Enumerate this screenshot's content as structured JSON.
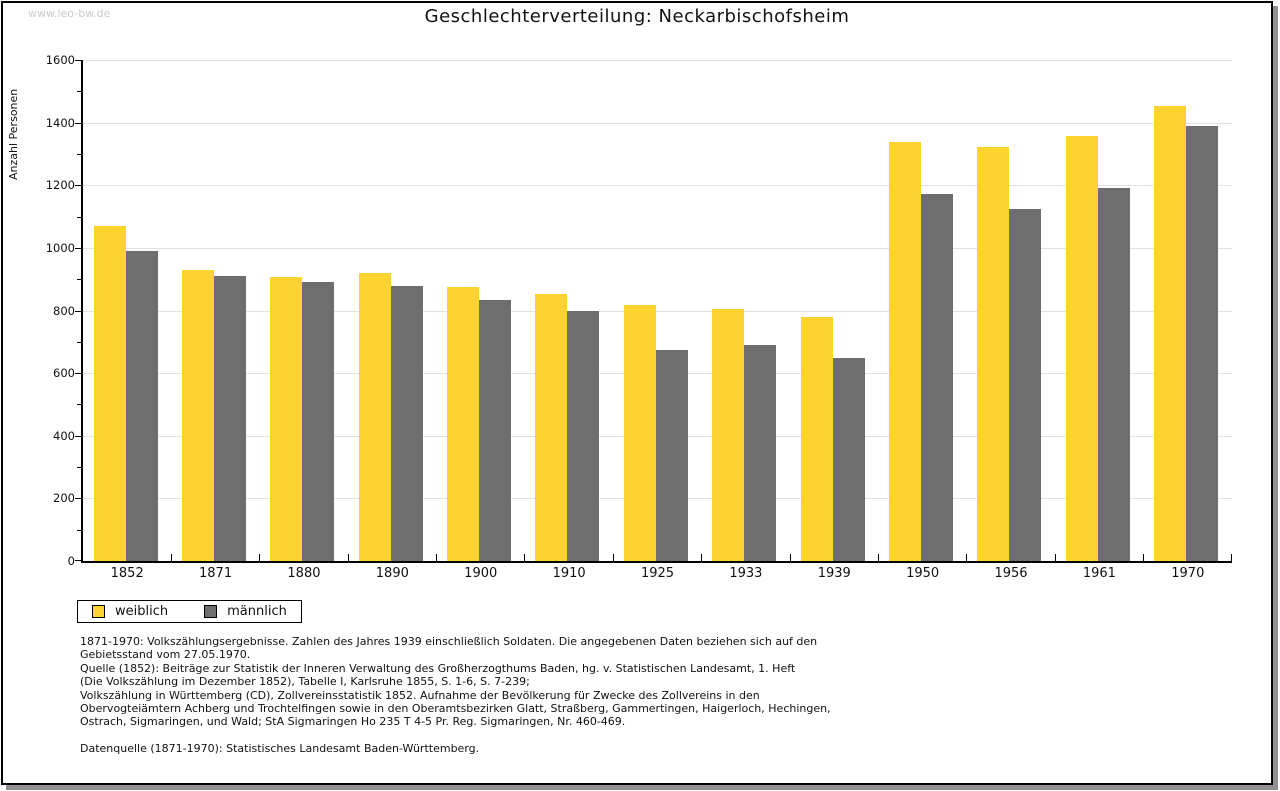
{
  "watermark": "www.leo-bw.de",
  "chart_data": {
    "type": "bar",
    "title": "Geschlechterverteilung: Neckarbischofsheim",
    "ylabel": "Anzahl Personen",
    "xlabel": "",
    "ylim": [
      0,
      1600
    ],
    "ytick_step": 200,
    "ytick_minor_step": 100,
    "grid": true,
    "legend_position": "bottom-left",
    "categories": [
      "1852",
      "1871",
      "1880",
      "1890",
      "1900",
      "1910",
      "1925",
      "1933",
      "1939",
      "1950",
      "1956",
      "1961",
      "1970"
    ],
    "series": [
      {
        "name": "weiblich",
        "color": "#FCD32F",
        "values": [
          1070,
          929,
          908,
          920,
          876,
          853,
          819,
          806,
          780,
          1339,
          1322,
          1358,
          1454
        ]
      },
      {
        "name": "männlich",
        "color": "#6E6E6E",
        "values": [
          990,
          910,
          892,
          877,
          832,
          798,
          674,
          691,
          648,
          1172,
          1125,
          1190,
          1390
        ]
      }
    ]
  },
  "footnotes": {
    "main": "1871-1970: Volkszählungsergebnisse. Zahlen des Jahres 1939 einschließlich Soldaten. Die angegebenen Daten beziehen sich auf den\nGebietsstand vom 27.05.1970.\nQuelle (1852): Beiträge zur Statistik der Inneren Verwaltung des Großherzogthums Baden, hg. v. Statistischen Landesamt, 1. Heft\n(Die Volkszählung im Dezember 1852), Tabelle I, Karlsruhe 1855, S. 1-6, S. 7-239;\nVolkszählung in Württemberg (CD), Zollvereinsstatistik 1852. Aufnahme der Bevölkerung für Zwecke des Zollvereins in den\nObervogteiämtern Achberg und Trochtelfingen sowie in den Oberamtsbezirken Glatt, Straßberg, Gammertingen, Haigerloch, Hechingen,\nOstrach, Sigmaringen, und Wald; StA Sigmaringen Ho 235 T 4-5 Pr. Reg. Sigmaringen, Nr. 460-469.",
    "datasource": "Datenquelle (1871-1970): Statistisches Landesamt Baden-Württemberg."
  },
  "colors": {
    "grid": "#E2E2E2",
    "axis": "#000000",
    "watermark": "#C9C9C9",
    "shadow": "#909090"
  }
}
